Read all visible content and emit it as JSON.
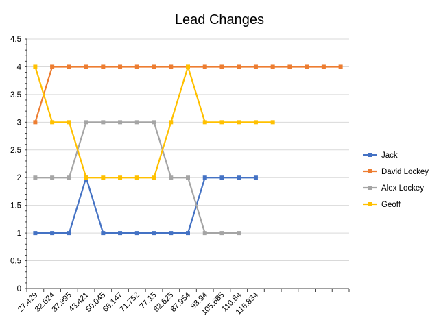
{
  "chart_data": {
    "type": "line",
    "title": "Lead Changes",
    "xlabel": "",
    "ylabel": "",
    "ylim": [
      0,
      4.5
    ],
    "ytick_step": 0.5,
    "yticks": [
      "0",
      "0.5",
      "1",
      "1.5",
      "2",
      "2.5",
      "3",
      "3.5",
      "4",
      "4.5"
    ],
    "categories": [
      "27.429",
      "32.624",
      "37.995",
      "43.421",
      "50.045",
      "66.147",
      "71.752",
      "77.15",
      "82.625",
      "87.954",
      "93.94",
      "105.685",
      "110.84",
      "116.834",
      "",
      "",
      "",
      "",
      ""
    ],
    "grid": true,
    "legend_position": "right",
    "series": [
      {
        "name": "Jack",
        "color": "#4472C4",
        "values": [
          1,
          1,
          1,
          2,
          1,
          1,
          1,
          1,
          1,
          1,
          2,
          2,
          2,
          2,
          null,
          null,
          null,
          null,
          null
        ]
      },
      {
        "name": "David Lockey",
        "color": "#ED7D31",
        "values": [
          3,
          4,
          4,
          4,
          4,
          4,
          4,
          4,
          4,
          4,
          4,
          4,
          4,
          4,
          4,
          4,
          4,
          4,
          4
        ]
      },
      {
        "name": "Alex Lockey",
        "color": "#A5A5A5",
        "values": [
          2,
          2,
          2,
          3,
          3,
          3,
          3,
          3,
          2,
          2,
          1,
          1,
          1,
          null,
          null,
          null,
          null,
          null,
          null
        ]
      },
      {
        "name": "Geoff",
        "color": "#FFC000",
        "values": [
          4,
          3,
          3,
          2,
          2,
          2,
          2,
          2,
          3,
          4,
          3,
          3,
          3,
          3,
          3,
          null,
          null,
          null,
          null
        ]
      }
    ]
  }
}
